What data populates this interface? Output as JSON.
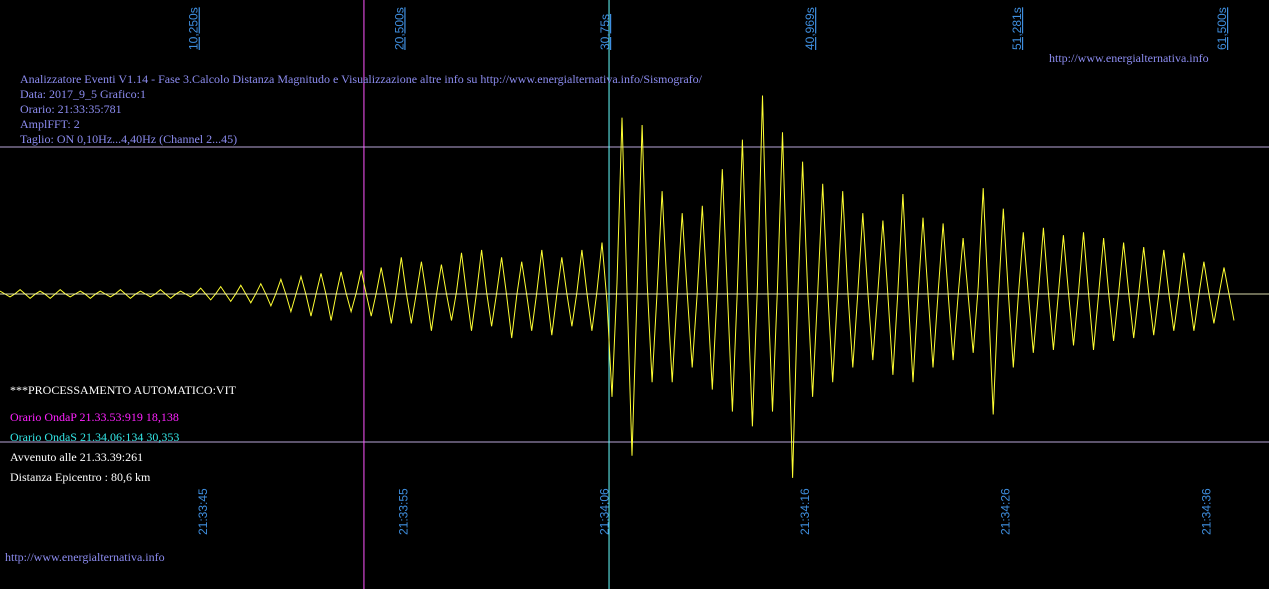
{
  "header": {
    "url_top": "http://www.energialternativa.info",
    "line1": "Analizzatore Eventi V1.14 - Fase 3.Calcolo Distanza Magnitudo e Visualizzazione  altre info su http://www.energialternativa.info/Sismografo/",
    "line2": "Data: 2017_9_5 Grafico:1",
    "line3": "Orario: 21:33:35:781",
    "line4": "AmplFFT: 2",
    "line5": "Taglio: ON 0,10Hz...4,40Hz       (Channel 2...45)"
  },
  "processing": {
    "title": "***PROCESSAMENTO AUTOMATICO:VIT",
    "p_wave": "Orario OndaP 21.33.53:919  18,138",
    "s_wave": "Orario OndaS 21.34.06:134  30,353",
    "occurred": "Avvenuto alle 21.33.39:261",
    "distance": "Distanza Epicentro : 80,6 km"
  },
  "footer": {
    "url_bottom": "http://www.energialternativa.info"
  },
  "colors": {
    "trace": "#ffff33",
    "p_marker": "#ff55ff",
    "s_marker": "#66ffff",
    "guide": "#b7a6d9",
    "axis_label": "#3f8fe0"
  },
  "chart_data": {
    "type": "line",
    "title": "",
    "xlabel": "",
    "ylabel": "",
    "xlim": [
      0,
      61.5
    ],
    "x_unit": "s",
    "top_tick_labels": [
      "10,250s",
      "20,500s",
      "30,75s",
      "40,969s",
      "51,281s",
      "61,500s"
    ],
    "top_tick_values": [
      10.25,
      20.5,
      30.75,
      40.969,
      51.281,
      61.5
    ],
    "bottom_tick_labels": [
      "21:33:45",
      "21:33:55",
      "21:34:06",
      "21:34:16",
      "21:34:26",
      "21:34:36"
    ],
    "bottom_tick_values": [
      10.719,
      20.719,
      30.719,
      40.719,
      50.719,
      60.719
    ],
    "markers": [
      {
        "type": "P",
        "x": 18.138
      },
      {
        "type": "S",
        "x": 30.353
      }
    ],
    "reference_levels": [
      1.0,
      -1.0
    ],
    "grid": false,
    "series": [
      {
        "values_sampled_every_0.5s": [
          0.02,
          -0.02,
          0.03,
          -0.03,
          0.02,
          -0.03,
          0.03,
          -0.02,
          0.02,
          -0.03,
          0.02,
          -0.02,
          0.03,
          -0.03,
          0.02,
          -0.02,
          0.03,
          -0.03,
          0.02,
          -0.02,
          0.04,
          -0.04,
          0.05,
          -0.05,
          0.06,
          -0.06,
          0.07,
          -0.08,
          0.1,
          -0.12,
          0.12,
          -0.15,
          0.14,
          -0.18,
          0.15,
          -0.12,
          0.16,
          -0.15,
          0.18,
          -0.2,
          0.25,
          -0.2,
          0.22,
          -0.25,
          0.2,
          -0.18,
          0.28,
          -0.25,
          0.3,
          -0.22,
          0.25,
          -0.3,
          0.22,
          -0.25,
          0.3,
          -0.28,
          0.25,
          -0.22,
          0.3,
          -0.25,
          0.35,
          -0.7,
          1.2,
          -1.1,
          1.15,
          -0.6,
          0.7,
          -0.6,
          0.55,
          -0.5,
          0.6,
          -0.65,
          0.85,
          -0.8,
          1.05,
          -0.9,
          1.35,
          -0.8,
          1.1,
          -1.25,
          0.9,
          -0.7,
          0.75,
          -0.6,
          0.7,
          -0.5,
          0.55,
          -0.45,
          0.5,
          -0.55,
          0.68,
          -0.6,
          0.52,
          -0.5,
          0.48,
          -0.45,
          0.38,
          -0.4,
          0.72,
          -0.82,
          0.58,
          -0.5,
          0.42,
          -0.4,
          0.45,
          -0.38,
          0.4,
          -0.35,
          0.42,
          -0.38,
          0.38,
          -0.32,
          0.35,
          -0.3,
          0.32,
          -0.28,
          0.3,
          -0.25,
          0.28,
          -0.25,
          0.22,
          -0.2,
          0.18,
          -0.18
        ]
      }
    ]
  }
}
